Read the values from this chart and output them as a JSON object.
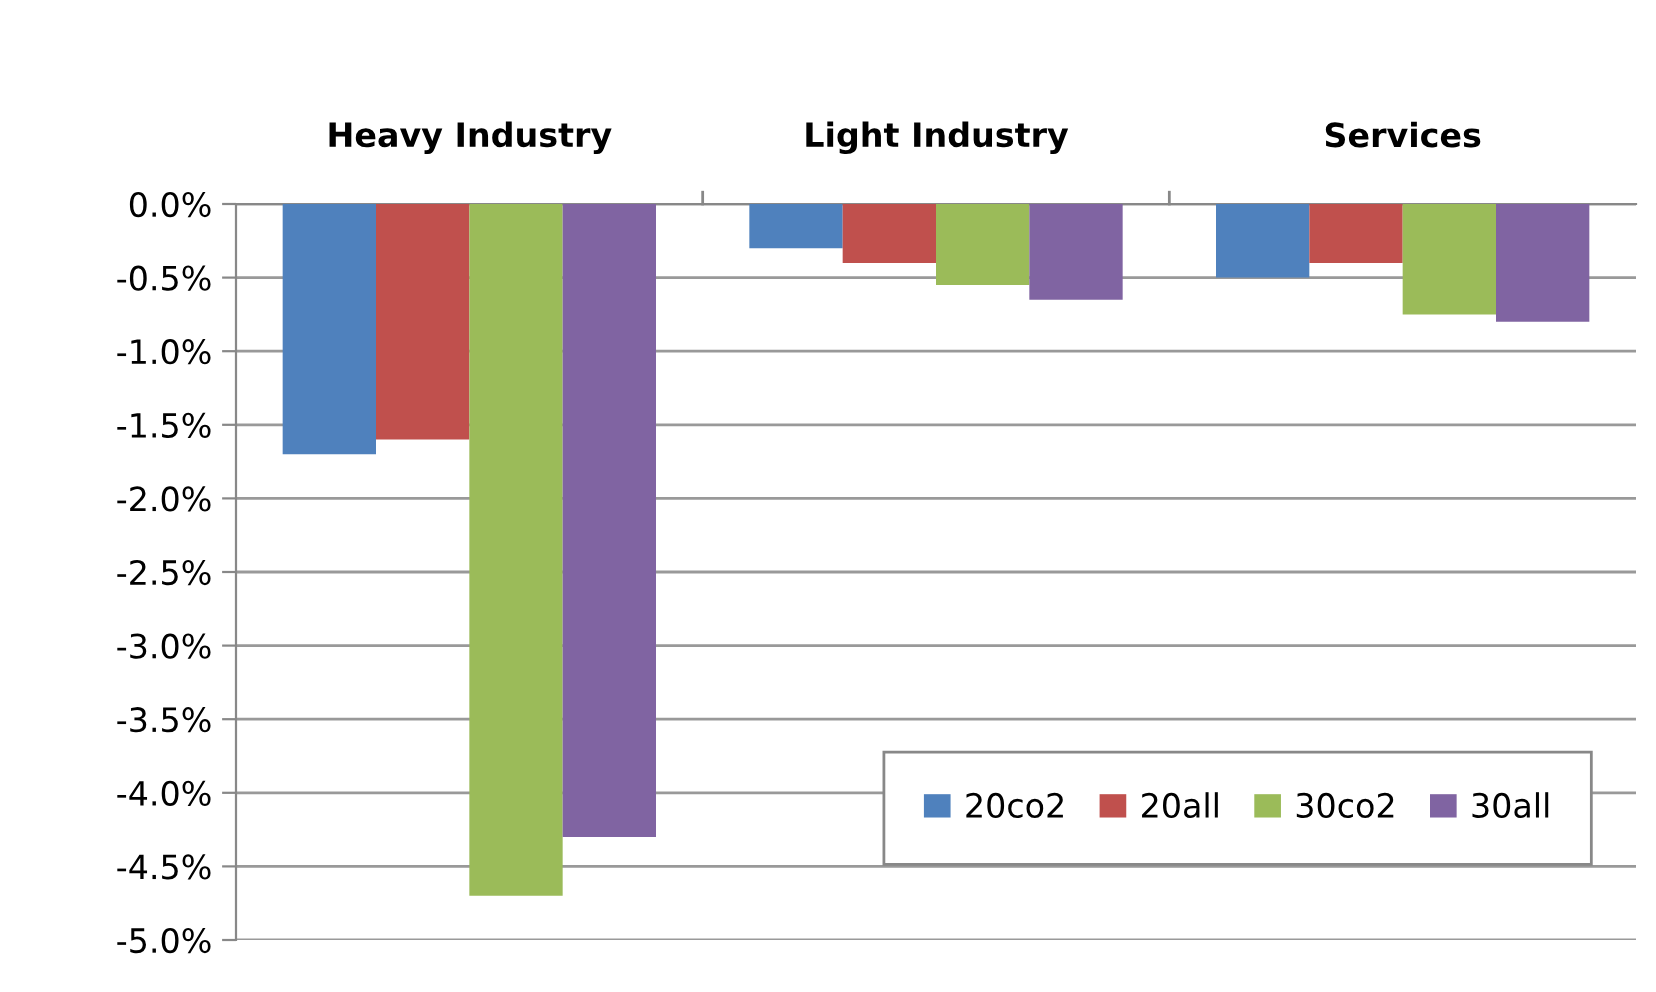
{
  "chart_data": {
    "type": "bar",
    "categories": [
      "Heavy Industry",
      "Light Industry",
      "Services"
    ],
    "series": [
      {
        "name": "20co2",
        "color": "#4f81bd",
        "values": [
          -1.7,
          -0.3,
          -0.5
        ]
      },
      {
        "name": "20all",
        "color": "#c0504d",
        "values": [
          -1.6,
          -0.4,
          -0.4
        ]
      },
      {
        "name": "30co2",
        "color": "#9bbb59",
        "values": [
          -4.7,
          -0.55,
          -0.75
        ]
      },
      {
        "name": "30all",
        "color": "#8064a2",
        "values": [
          -4.3,
          -0.65,
          -0.8
        ]
      }
    ],
    "ylim": [
      -5.0,
      0.0
    ],
    "yticks": [
      {
        "value": 0.0,
        "label": "0.0%"
      },
      {
        "value": -0.5,
        "label": "-0.5%"
      },
      {
        "value": -1.0,
        "label": "-1.0%"
      },
      {
        "value": -1.5,
        "label": "-1.5%"
      },
      {
        "value": -2.0,
        "label": "-2.0%"
      },
      {
        "value": -2.5,
        "label": "-2.5%"
      },
      {
        "value": -3.0,
        "label": "-3.0%"
      },
      {
        "value": -3.5,
        "label": "-3.5%"
      },
      {
        "value": -4.0,
        "label": "-4.0%"
      },
      {
        "value": -4.5,
        "label": "-4.5%"
      },
      {
        "value": -5.0,
        "label": "-5.0%"
      }
    ],
    "grid": "y",
    "legend": "bottom right"
  }
}
